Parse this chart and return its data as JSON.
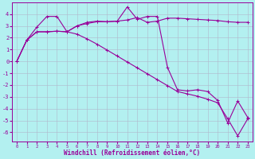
{
  "xlabel": "Windchill (Refroidissement éolien,°C)",
  "line_color": "#990099",
  "bg_color": "#b3f0f0",
  "grid_color": "#b0b8cc",
  "xlim": [
    -0.5,
    23.5
  ],
  "ylim": [
    -6.8,
    5.0
  ],
  "xticks": [
    0,
    1,
    2,
    3,
    4,
    5,
    6,
    7,
    8,
    9,
    10,
    11,
    12,
    13,
    14,
    15,
    16,
    17,
    18,
    19,
    20,
    21,
    22,
    23
  ],
  "yticks": [
    -6,
    -5,
    -4,
    -3,
    -2,
    -1,
    0,
    1,
    2,
    3,
    4
  ],
  "line1_x": [
    0,
    1,
    2,
    3,
    4,
    5,
    6,
    7,
    8,
    9,
    10,
    11,
    12,
    13,
    14,
    15,
    16,
    17,
    18,
    19,
    20,
    21,
    22,
    23
  ],
  "line1_y": [
    0.0,
    1.8,
    2.9,
    3.8,
    3.8,
    2.5,
    3.0,
    3.3,
    3.4,
    3.35,
    3.4,
    3.5,
    3.7,
    3.3,
    3.4,
    3.65,
    3.65,
    3.6,
    3.55,
    3.5,
    3.45,
    3.35,
    3.3,
    3.3
  ],
  "line2_x": [
    0,
    1,
    2,
    3,
    4,
    5,
    6,
    7,
    8,
    9,
    10,
    11,
    12,
    13,
    14,
    15,
    16,
    17,
    18,
    19,
    20,
    21,
    22,
    23
  ],
  "line2_y": [
    0.0,
    1.8,
    2.5,
    2.5,
    2.55,
    2.5,
    3.0,
    3.2,
    3.35,
    3.35,
    3.4,
    4.6,
    3.55,
    3.8,
    3.8,
    -0.5,
    -2.4,
    -2.5,
    -2.4,
    -2.55,
    -3.3,
    -5.2,
    -3.35,
    -4.75
  ],
  "line3_x": [
    0,
    1,
    2,
    3,
    4,
    5,
    6,
    7,
    8,
    9,
    10,
    11,
    12,
    13,
    14,
    15,
    16,
    17,
    18,
    19,
    20,
    21,
    22,
    23
  ],
  "line3_y": [
    0.0,
    1.8,
    2.5,
    2.5,
    2.55,
    2.5,
    2.3,
    1.9,
    1.45,
    0.95,
    0.45,
    -0.05,
    -0.55,
    -1.05,
    -1.55,
    -2.05,
    -2.55,
    -2.75,
    -2.95,
    -3.2,
    -3.5,
    -4.85,
    -6.3,
    -4.85
  ]
}
